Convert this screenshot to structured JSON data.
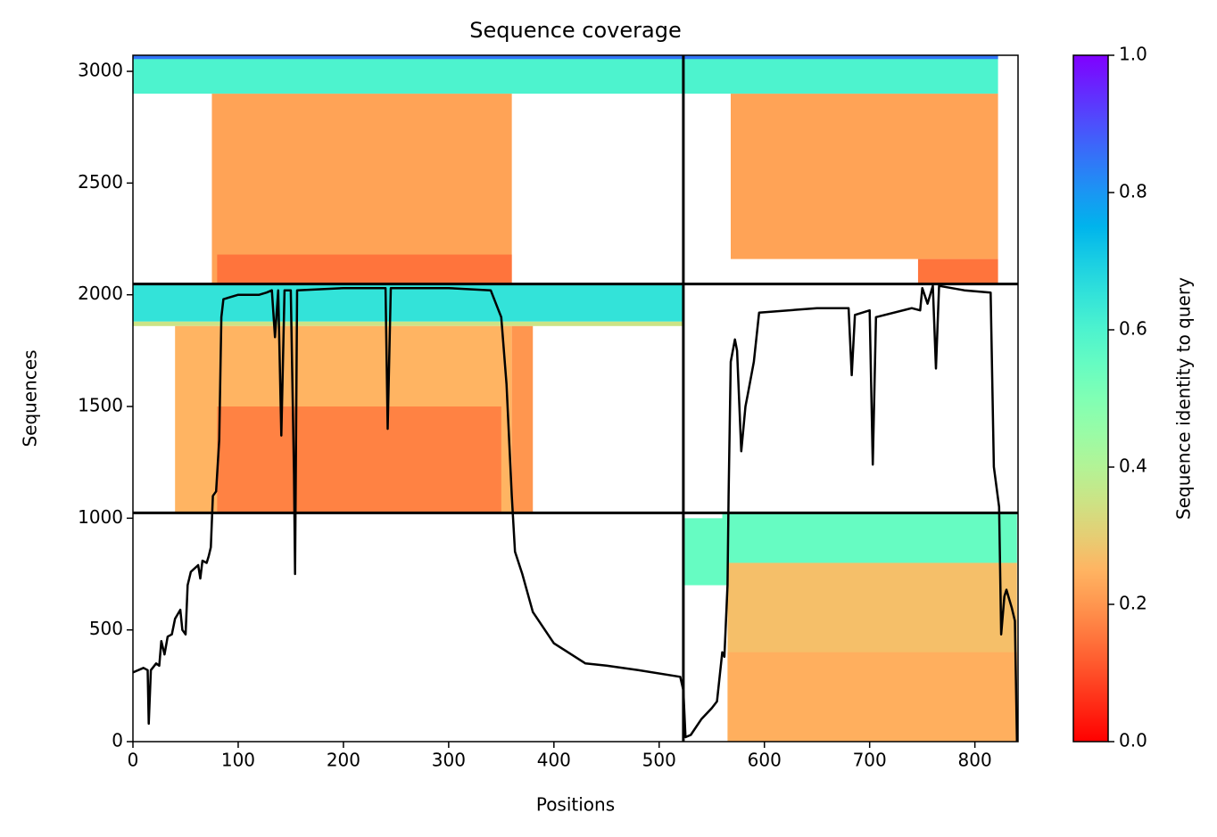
{
  "chart_data": {
    "type": "coverage",
    "title": "Sequence coverage",
    "xlabel": "Positions",
    "ylabel": "Sequences",
    "xlim": [
      0,
      841
    ],
    "ylim": [
      0,
      3072
    ],
    "xticks": [
      0,
      100,
      200,
      300,
      400,
      500,
      600,
      700,
      800
    ],
    "yticks": [
      0,
      500,
      1000,
      1500,
      2000,
      2500,
      3000
    ],
    "dividers_x": [
      523
    ],
    "dividers_y": [
      1024,
      2048
    ],
    "blocks": [
      {
        "x0": 0,
        "x1": 523,
        "y0": 2900,
        "y1": 3072,
        "identity": 0.6
      },
      {
        "x0": 0,
        "x1": 523,
        "y0": 3055,
        "y1": 3072,
        "identity": 0.85
      },
      {
        "x0": 75,
        "x1": 360,
        "y0": 2048,
        "y1": 2900,
        "identity": 0.22
      },
      {
        "x0": 80,
        "x1": 360,
        "y0": 2048,
        "y1": 2180,
        "identity": 0.15
      },
      {
        "x0": 523,
        "x1": 822,
        "y0": 2900,
        "y1": 3072,
        "identity": 0.6
      },
      {
        "x0": 523,
        "x1": 822,
        "y0": 3055,
        "y1": 3072,
        "identity": 0.85
      },
      {
        "x0": 568,
        "x1": 822,
        "y0": 2160,
        "y1": 2900,
        "identity": 0.22
      },
      {
        "x0": 746,
        "x1": 822,
        "y0": 2048,
        "y1": 2160,
        "identity": 0.15
      },
      {
        "x0": 0,
        "x1": 523,
        "y0": 1880,
        "y1": 2048,
        "identity": 0.65
      },
      {
        "x0": 0,
        "x1": 523,
        "y0": 1860,
        "y1": 1880,
        "identity": 0.35
      },
      {
        "x0": 40,
        "x1": 360,
        "y0": 1024,
        "y1": 1860,
        "identity": 0.25
      },
      {
        "x0": 80,
        "x1": 350,
        "y0": 1024,
        "y1": 1500,
        "identity": 0.17
      },
      {
        "x0": 360,
        "x1": 380,
        "y0": 1024,
        "y1": 1860,
        "identity": 0.2
      },
      {
        "x0": 560,
        "x1": 840,
        "y0": 800,
        "y1": 1024,
        "identity": 0.55
      },
      {
        "x0": 523,
        "x1": 565,
        "y0": 700,
        "y1": 1000,
        "identity": 0.55
      },
      {
        "x0": 565,
        "x1": 840,
        "y0": 0,
        "y1": 800,
        "identity": 0.27
      },
      {
        "x0": 565,
        "x1": 840,
        "y0": 0,
        "y1": 400,
        "identity": 0.24
      }
    ],
    "line": {
      "color": "#000000",
      "x": [
        0,
        10,
        14,
        15,
        17,
        22,
        25,
        27,
        30,
        33,
        37,
        40,
        45,
        47,
        50,
        52,
        55,
        62,
        64,
        66,
        70,
        72,
        74,
        76,
        79,
        82,
        84,
        86,
        100,
        120,
        127,
        132,
        135,
        138,
        141,
        144,
        150,
        153,
        154,
        156,
        200,
        240,
        242,
        245,
        300,
        340,
        350,
        355,
        360,
        363,
        370,
        380,
        400,
        430,
        450,
        480,
        520,
        523,
        525,
        530,
        540,
        550,
        555,
        560,
        562,
        565,
        566,
        568,
        572,
        574,
        578,
        582,
        584,
        590,
        595,
        650,
        680,
        683,
        686,
        700,
        703,
        706,
        740,
        748,
        750,
        755,
        760,
        763,
        766,
        790,
        815,
        818,
        823,
        825,
        828,
        830,
        835,
        838,
        840
      ],
      "y": [
        310,
        330,
        320,
        80,
        320,
        350,
        340,
        450,
        390,
        470,
        480,
        550,
        590,
        500,
        480,
        700,
        760,
        790,
        730,
        810,
        800,
        830,
        870,
        1100,
        1120,
        1350,
        1900,
        1980,
        2000,
        2000,
        2010,
        2020,
        1810,
        2020,
        1370,
        2020,
        2020,
        1200,
        750,
        2020,
        2030,
        2030,
        1400,
        2030,
        2030,
        2020,
        1900,
        1600,
        1100,
        850,
        750,
        580,
        440,
        350,
        340,
        320,
        290,
        230,
        20,
        30,
        100,
        150,
        180,
        400,
        380,
        700,
        1100,
        1700,
        1800,
        1750,
        1300,
        1500,
        1550,
        1700,
        1920,
        1940,
        1940,
        1640,
        1910,
        1930,
        1240,
        1900,
        1940,
        1930,
        2030,
        1960,
        2040,
        1670,
        2040,
        2020,
        2010,
        1230,
        1050,
        480,
        650,
        680,
        600,
        540,
        0
      ]
    },
    "colorbar": {
      "label": "Sequence identity to query",
      "cmap": "rainbow_r",
      "lim": [
        0,
        1
      ],
      "ticks": [
        {
          "value": 0,
          "label": "0.0"
        },
        0.2,
        0.4,
        0.6,
        0.8,
        {
          "value": 1,
          "label": "1.0"
        }
      ]
    }
  }
}
